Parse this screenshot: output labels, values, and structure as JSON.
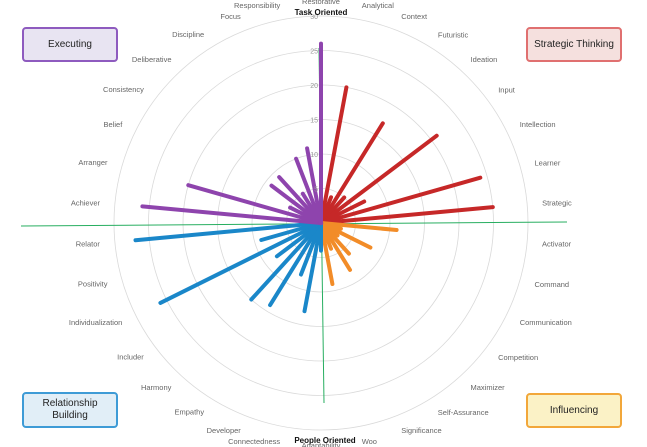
{
  "chart_data": {
    "type": "polar-bar",
    "title": "",
    "axis_top_label": "Task Oriented",
    "axis_bottom_label": "People Oriented",
    "r_range": [
      0,
      30
    ],
    "r_ticks": [
      5,
      10,
      15,
      20,
      25,
      30
    ],
    "categories": [
      {
        "name": "Executing",
        "color": "#8e44ad",
        "box_bg": "#e8e4f2",
        "position": "top-left"
      },
      {
        "name": "Strategic Thinking",
        "color": "#c62828",
        "box_bg": "#f5e0de",
        "position": "top-right"
      },
      {
        "name": "Influencing",
        "color": "#f28c28",
        "box_bg": "#fbf2c6",
        "position": "bottom-right"
      },
      {
        "name": "Relationship Building",
        "color": "#1a87c9",
        "box_bg": "#e1eef7",
        "position": "bottom-left"
      }
    ],
    "series": [
      {
        "name": "Analytical",
        "group": "Strategic Thinking",
        "value": 20
      },
      {
        "name": "Context",
        "group": "Strategic Thinking",
        "value": 4
      },
      {
        "name": "Futuristic",
        "group": "Strategic Thinking",
        "value": 17
      },
      {
        "name": "Ideation",
        "group": "Strategic Thinking",
        "value": 5
      },
      {
        "name": "Input",
        "group": "Strategic Thinking",
        "value": 21
      },
      {
        "name": "Intellection",
        "group": "Strategic Thinking",
        "value": 7
      },
      {
        "name": "Learner",
        "group": "Strategic Thinking",
        "value": 24
      },
      {
        "name": "Strategic",
        "group": "Strategic Thinking",
        "value": 25
      },
      {
        "name": "Activator",
        "group": "Influencing",
        "value": 11
      },
      {
        "name": "Command",
        "group": "Influencing",
        "value": 3
      },
      {
        "name": "Communication",
        "group": "Influencing",
        "value": 8
      },
      {
        "name": "Competition",
        "group": "Influencing",
        "value": 3
      },
      {
        "name": "Maximizer",
        "group": "Influencing",
        "value": 6
      },
      {
        "name": "Self-Assurance",
        "group": "Influencing",
        "value": 8
      },
      {
        "name": "Significance",
        "group": "Influencing",
        "value": 4
      },
      {
        "name": "Woo",
        "group": "Influencing",
        "value": 9
      },
      {
        "name": "Adaptability",
        "group": "Relationship Building",
        "value": 4
      },
      {
        "name": "Connectedness",
        "group": "Relationship Building",
        "value": 13
      },
      {
        "name": "Developer",
        "group": "Relationship Building",
        "value": 8
      },
      {
        "name": "Empathy",
        "group": "Relationship Building",
        "value": 14
      },
      {
        "name": "Harmony",
        "group": "Relationship Building",
        "value": 15
      },
      {
        "name": "Includer",
        "group": "Relationship Building",
        "value": 8
      },
      {
        "name": "Individualization",
        "group": "Relationship Building",
        "value": 26
      },
      {
        "name": "Positivity",
        "group": "Relationship Building",
        "value": 9
      },
      {
        "name": "Relator",
        "group": "Relationship Building",
        "value": 27
      },
      {
        "name": "Achiever",
        "group": "Executing",
        "value": 26
      },
      {
        "name": "Arranger",
        "group": "Executing",
        "value": 20
      },
      {
        "name": "Belief",
        "group": "Executing",
        "value": 5
      },
      {
        "name": "Consistency",
        "group": "Executing",
        "value": 9
      },
      {
        "name": "Deliberative",
        "group": "Executing",
        "value": 9
      },
      {
        "name": "Discipline",
        "group": "Executing",
        "value": 5
      },
      {
        "name": "Focus",
        "group": "Executing",
        "value": 10
      },
      {
        "name": "Responsibility",
        "group": "Executing",
        "value": 11
      },
      {
        "name": "Restorative",
        "group": "Executing",
        "value": 26
      }
    ]
  }
}
